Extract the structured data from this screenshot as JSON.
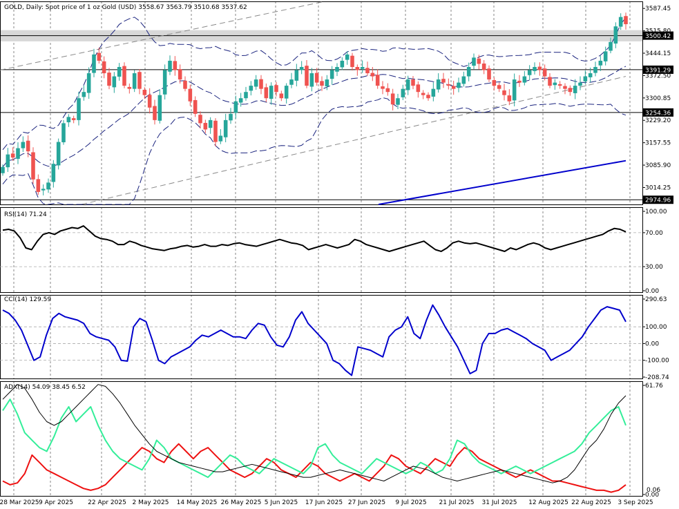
{
  "header": {
    "symbol": "GOLD",
    "timeframe": "Daily",
    "description": "Spot price of 1 oz Gold (USD)",
    "ohlc": "3558.67 3563.79 3510.68 3537.62"
  },
  "price_axis": [
    "3587.45",
    "3515.80",
    "3444.15",
    "3372.50",
    "3300.85",
    "3229.20",
    "3157.55",
    "3085.90",
    "3014.25"
  ],
  "levels": [
    {
      "label": "3500.42",
      "value": 3500.42
    },
    {
      "label": "3391.29",
      "value": 3391.29
    },
    {
      "label": "3254.36",
      "value": 3254.36
    },
    {
      "label": "2974.96",
      "value": 2974.96
    }
  ],
  "rsi": {
    "title": "RSI(14) 71.24",
    "ticks": [
      "100.00",
      "70.00",
      "30.00",
      "0.00"
    ]
  },
  "cci": {
    "title": "CCI(14) 129.59",
    "ticks": [
      "290.63",
      "100.00",
      "0.00",
      "-100.00",
      "-208.74"
    ]
  },
  "adx": {
    "title": "ADX(14) 54.09 38.45 6.52",
    "ticks": [
      "61.76",
      "0.00"
    ],
    "bottom_tag": "0.06"
  },
  "date_labels": [
    "28 Mar 2025",
    "9 Apr 2025",
    "22 Apr 2025",
    "2 May 2025",
    "14 May 2025",
    "26 May 2025",
    "5 Jun 2025",
    "17 Jun 2025",
    "27 Jun 2025",
    "9 Jul 2025",
    "21 Jul 2025",
    "31 Jul 2025",
    "12 Aug 2025",
    "22 Aug 2025",
    "3 Sep 2025"
  ],
  "colors": {
    "bull": "#26a69a",
    "bear": "#ef5350",
    "ma": "#0000cc",
    "bands": "#1a237e",
    "rsi": "#000000",
    "cci": "#0000cc",
    "adx": "#000000",
    "plus_di": "#33ee99",
    "minus_di": "#ee1111",
    "zone": "#d8d8d8"
  },
  "chart_data": [
    {
      "type": "candlestick",
      "title": "GOLD, Daily: Spot price of 1 oz Gold (USD)",
      "ylim": [
        2960,
        3610
      ],
      "close": [
        3080,
        3120,
        3110,
        3140,
        3160,
        3130,
        3040,
        3000,
        3010,
        3030,
        3090,
        3160,
        3220,
        3240,
        3230,
        3300,
        3320,
        3380,
        3440,
        3420,
        3380,
        3340,
        3370,
        3400,
        3340,
        3330,
        3380,
        3330,
        3310,
        3270,
        3230,
        3310,
        3390,
        3420,
        3390,
        3360,
        3330,
        3290,
        3250,
        3220,
        3200,
        3230,
        3160,
        3180,
        3230,
        3250,
        3290,
        3300,
        3320,
        3340,
        3360,
        3330,
        3300,
        3340,
        3320,
        3300,
        3340,
        3360,
        3390,
        3400,
        3340,
        3380,
        3350,
        3340,
        3360,
        3390,
        3400,
        3420,
        3440,
        3400,
        3390,
        3400,
        3380,
        3370,
        3340,
        3330,
        3320,
        3280,
        3300,
        3330,
        3360,
        3340,
        3320,
        3310,
        3300,
        3330,
        3360,
        3350,
        3340,
        3330,
        3350,
        3370,
        3400,
        3430,
        3410,
        3390,
        3360,
        3340,
        3330,
        3310,
        3290,
        3360,
        3350,
        3370,
        3390,
        3400,
        3390,
        3370,
        3340,
        3350,
        3340,
        3330,
        3320,
        3340,
        3350,
        3370,
        3380,
        3400,
        3420,
        3450,
        3480,
        3530,
        3560,
        3537
      ]
    },
    {
      "type": "line",
      "title": "RSI(14) 71.24",
      "ylim": [
        0,
        100
      ],
      "values": [
        73,
        74,
        72,
        64,
        52,
        50,
        60,
        68,
        70,
        68,
        72,
        74,
        76,
        75,
        78,
        72,
        66,
        63,
        62,
        60,
        56,
        56,
        60,
        58,
        55,
        53,
        51,
        50,
        49,
        51,
        52,
        54,
        55,
        53,
        54,
        56,
        54,
        54,
        56,
        55,
        57,
        58,
        56,
        55,
        54,
        56,
        58,
        60,
        62,
        60,
        58,
        57,
        55,
        50,
        52,
        54,
        56,
        54,
        52,
        54,
        56,
        62,
        60,
        56,
        54,
        52,
        50,
        48,
        50,
        52,
        54,
        56,
        58,
        60,
        55,
        50,
        48,
        52,
        58,
        60,
        58,
        57,
        58,
        56,
        54,
        52,
        50,
        48,
        52,
        50,
        53,
        56,
        58,
        56,
        52,
        50,
        52,
        54,
        56,
        58,
        60,
        62,
        64,
        66,
        68,
        72,
        75,
        74,
        71
      ]
    },
    {
      "type": "line",
      "title": "CCI(14) 129.59",
      "ylim": [
        -208.74,
        290.63
      ],
      "values": [
        200,
        180,
        140,
        80,
        -10,
        -100,
        -80,
        50,
        150,
        180,
        160,
        150,
        140,
        120,
        60,
        40,
        30,
        20,
        -20,
        -100,
        -105,
        100,
        150,
        130,
        20,
        -100,
        -120,
        -80,
        -60,
        -40,
        -20,
        20,
        50,
        40,
        60,
        80,
        60,
        40,
        40,
        30,
        80,
        120,
        110,
        40,
        -10,
        -20,
        40,
        140,
        190,
        120,
        80,
        40,
        0,
        -100,
        -120,
        -160,
        -190,
        -20,
        -30,
        -40,
        -60,
        -80,
        40,
        80,
        100,
        160,
        60,
        30,
        140,
        230,
        170,
        100,
        40,
        -20,
        -100,
        -180,
        -160,
        0,
        60,
        60,
        80,
        90,
        70,
        50,
        30,
        0,
        -20,
        -40,
        -100,
        -80,
        -60,
        -40,
        0,
        40,
        100,
        150,
        200,
        220,
        210,
        200,
        130
      ]
    },
    {
      "type": "line",
      "title": "ADX(14) 54.09 38.45 6.52",
      "ylim": [
        0,
        61.76
      ],
      "series": [
        {
          "values": [
            52,
            56,
            60,
            58,
            52,
            45,
            40,
            38,
            40,
            44,
            48,
            52,
            56,
            60,
            59,
            55,
            50,
            44,
            38,
            33,
            28,
            24,
            22,
            20,
            18,
            17,
            16,
            15,
            14,
            13,
            13,
            14,
            15,
            16,
            17,
            16,
            15,
            14,
            13,
            12,
            11,
            10,
            10,
            11,
            12,
            13,
            14,
            13,
            12,
            11,
            10,
            9,
            8,
            10,
            12,
            14,
            16,
            15,
            14,
            12,
            10,
            9,
            8,
            9,
            10,
            11,
            12,
            13,
            14,
            13,
            12,
            11,
            10,
            9,
            8,
            7,
            8,
            10,
            14,
            20,
            26,
            30,
            36,
            44,
            50,
            54
          ]
        },
        {
          "values": [
            46,
            52,
            44,
            34,
            30,
            26,
            24,
            32,
            42,
            48,
            40,
            44,
            48,
            38,
            30,
            24,
            20,
            18,
            16,
            14,
            20,
            30,
            26,
            20,
            18,
            16,
            14,
            12,
            10,
            14,
            18,
            22,
            20,
            16,
            14,
            12,
            16,
            20,
            18,
            16,
            14,
            12,
            16,
            26,
            28,
            22,
            18,
            16,
            14,
            12,
            16,
            20,
            18,
            16,
            14,
            12,
            14,
            18,
            16,
            12,
            14,
            20,
            30,
            28,
            22,
            18,
            16,
            14,
            12,
            14,
            16,
            14,
            12,
            14,
            16,
            18,
            20,
            22,
            24,
            28,
            34,
            38,
            42,
            46,
            48,
            38
          ]
        },
        {
          "values": [
            8,
            6,
            7,
            12,
            22,
            18,
            14,
            12,
            10,
            8,
            6,
            4,
            3,
            4,
            6,
            10,
            14,
            18,
            22,
            26,
            24,
            20,
            18,
            24,
            28,
            24,
            20,
            24,
            26,
            22,
            18,
            14,
            12,
            10,
            12,
            16,
            20,
            18,
            14,
            12,
            10,
            14,
            18,
            16,
            12,
            10,
            8,
            10,
            12,
            10,
            8,
            12,
            16,
            22,
            20,
            16,
            14,
            12,
            16,
            20,
            18,
            16,
            22,
            26,
            24,
            20,
            18,
            16,
            14,
            12,
            10,
            12,
            14,
            12,
            10,
            8,
            8,
            7,
            6,
            5,
            4,
            3,
            3,
            2,
            3,
            6
          ]
        }
      ]
    }
  ]
}
